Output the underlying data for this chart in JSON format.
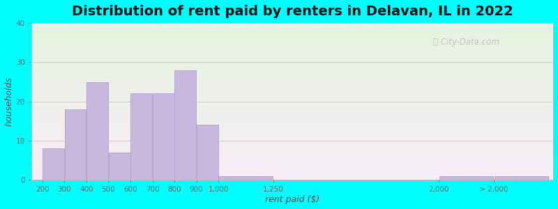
{
  "title": "Distribution of rent paid by renters in Delavan, IL in 2022",
  "xlabel": "rent paid ($)",
  "ylabel": "households",
  "bar_color": "#c8b8e0",
  "bar_edge_color": "#b0a0cc",
  "background_color": "#00ffff",
  "ylim": [
    0,
    40
  ],
  "yticks": [
    0,
    10,
    20,
    30,
    40
  ],
  "bin_lefts": [
    200,
    300,
    400,
    500,
    600,
    700,
    800,
    900,
    1000,
    1250,
    2000,
    2250
  ],
  "bin_rights": [
    300,
    400,
    500,
    600,
    700,
    800,
    900,
    1000,
    1250,
    2000,
    2250,
    2500
  ],
  "values": [
    8,
    18,
    25,
    7,
    22,
    22,
    28,
    14,
    1,
    0,
    1,
    1
  ],
  "xtick_positions": [
    200,
    300,
    400,
    500,
    600,
    700,
    800,
    900,
    1000,
    1250,
    2000,
    2250
  ],
  "xtick_labels": [
    "200",
    "300",
    "400",
    "500",
    "600",
    "700",
    "800",
    "900",
    "1,000",
    "1,250",
    "2,000",
    "> 2,000"
  ],
  "gridline_color": "#cccccc",
  "title_fontsize": 14,
  "axis_label_fontsize": 9,
  "tick_fontsize": 7.5
}
